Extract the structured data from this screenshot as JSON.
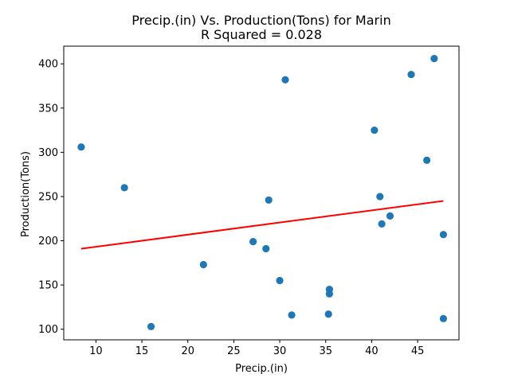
{
  "chart_data": {
    "type": "scatter",
    "title": "Precip.(in) Vs. Production(Tons) for Marin",
    "subtitle": "R Squared =  0.028",
    "xlabel": "Precip.(in)",
    "ylabel": "Production(Tons)",
    "xlim": [
      6.5,
      49.5
    ],
    "ylim": [
      88,
      420
    ],
    "xticks": [
      10,
      15,
      20,
      25,
      30,
      35,
      40,
      45
    ],
    "yticks": [
      100,
      150,
      200,
      250,
      300,
      350,
      400
    ],
    "grid": false,
    "legend": "none",
    "series": [
      {
        "color": "#1f77b4",
        "points": [
          {
            "x": 8.4,
            "y": 306
          },
          {
            "x": 13.1,
            "y": 260
          },
          {
            "x": 16.0,
            "y": 103
          },
          {
            "x": 21.7,
            "y": 173
          },
          {
            "x": 27.1,
            "y": 199
          },
          {
            "x": 28.5,
            "y": 191
          },
          {
            "x": 28.8,
            "y": 246
          },
          {
            "x": 30.0,
            "y": 155
          },
          {
            "x": 30.6,
            "y": 382
          },
          {
            "x": 31.3,
            "y": 116
          },
          {
            "x": 35.3,
            "y": 117
          },
          {
            "x": 35.4,
            "y": 145
          },
          {
            "x": 35.4,
            "y": 140
          },
          {
            "x": 40.3,
            "y": 325
          },
          {
            "x": 40.9,
            "y": 250
          },
          {
            "x": 41.1,
            "y": 219
          },
          {
            "x": 42.0,
            "y": 228
          },
          {
            "x": 44.3,
            "y": 388
          },
          {
            "x": 46.0,
            "y": 291
          },
          {
            "x": 46.8,
            "y": 406
          },
          {
            "x": 47.8,
            "y": 207
          },
          {
            "x": 47.8,
            "y": 112
          }
        ]
      }
    ],
    "trendline": {
      "color": "#ff0000",
      "x": [
        8.4,
        47.8
      ],
      "y": [
        191,
        245
      ]
    }
  }
}
